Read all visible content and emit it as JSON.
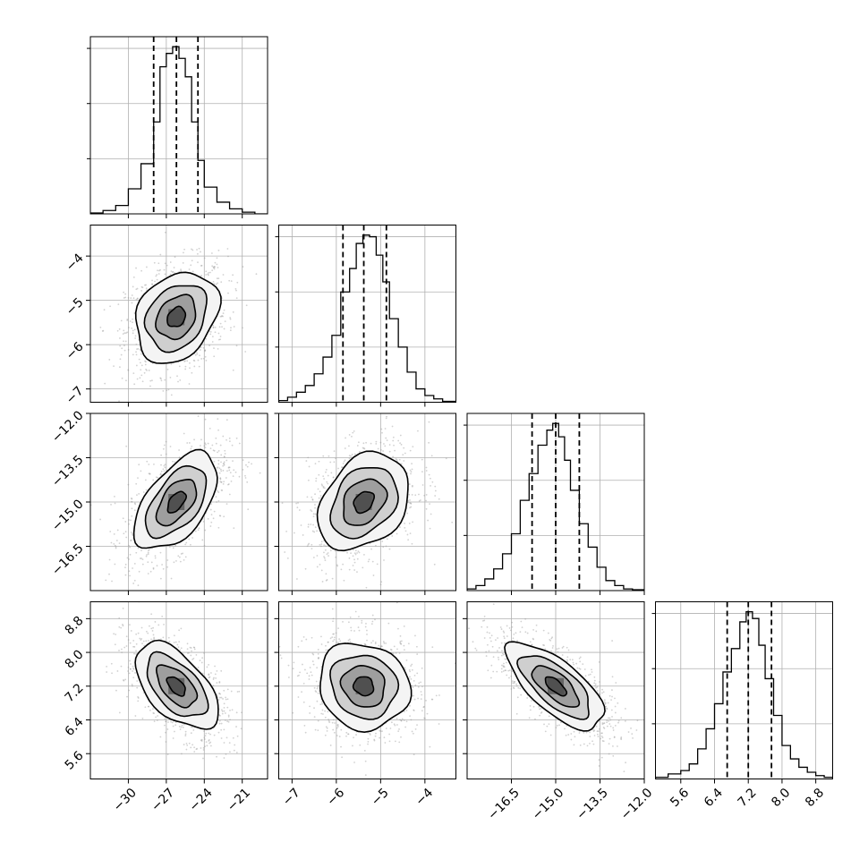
{
  "chart_data": {
    "type": "corner",
    "grid": true,
    "parameters": [
      {
        "index": 0,
        "range": [
          -33,
          -19
        ],
        "ticks": [
          -30,
          -27,
          -24,
          -21
        ],
        "tick_labels": [
          "−30",
          "−27",
          "−24",
          "−21"
        ],
        "quantiles": [
          -28.0,
          -26.2,
          -24.5
        ],
        "median": -26.2,
        "sigma": 1.6,
        "hist_bins": [
          -33,
          -32,
          -31,
          -30,
          -29,
          -28,
          -27.5,
          -27,
          -26.5,
          -26,
          -25.5,
          -25,
          -24.5,
          -24,
          -23,
          -22,
          -21,
          -20,
          -19
        ],
        "hist_counts": [
          0.005,
          0.02,
          0.05,
          0.15,
          0.3,
          0.55,
          0.88,
          0.96,
          1.0,
          0.93,
          0.82,
          0.55,
          0.32,
          0.16,
          0.07,
          0.03,
          0.01,
          0.0
        ]
      },
      {
        "index": 1,
        "range": [
          -7.3,
          -3.3
        ],
        "ticks": [
          -7,
          -6,
          -5,
          -4
        ],
        "tick_labels": [
          "−7",
          "−6",
          "−5",
          "−4"
        ],
        "quantiles": [
          -5.85,
          -5.38,
          -4.87
        ],
        "median": -5.38,
        "sigma": 0.5,
        "hist_bins": [
          -7.3,
          -7.1,
          -6.9,
          -6.7,
          -6.5,
          -6.3,
          -6.1,
          -5.9,
          -5.7,
          -5.55,
          -5.4,
          -5.25,
          -5.1,
          -4.95,
          -4.8,
          -4.6,
          -4.4,
          -4.2,
          -4.0,
          -3.8,
          -3.6,
          -3.3
        ],
        "hist_counts": [
          0.01,
          0.03,
          0.06,
          0.1,
          0.17,
          0.27,
          0.4,
          0.66,
          0.8,
          0.95,
          1.0,
          0.99,
          0.88,
          0.72,
          0.5,
          0.33,
          0.18,
          0.08,
          0.04,
          0.02,
          0.005
        ]
      },
      {
        "index": 2,
        "range": [
          -18,
          -12
        ],
        "ticks": [
          -16.5,
          -15.0,
          -13.5,
          -12.0
        ],
        "tick_labels": [
          "−16.5",
          "−15.0",
          "−13.5",
          "−12.0"
        ],
        "quantiles": [
          -15.8,
          -15.0,
          -14.2
        ],
        "median": -15.0,
        "sigma": 0.8,
        "hist_bins": [
          -18,
          -17.7,
          -17.4,
          -17.1,
          -16.8,
          -16.5,
          -16.2,
          -15.9,
          -15.6,
          -15.3,
          -15.1,
          -14.9,
          -14.7,
          -14.5,
          -14.2,
          -13.9,
          -13.6,
          -13.3,
          -13.0,
          -12.7,
          -12.4,
          -12.0
        ],
        "hist_counts": [
          0.01,
          0.03,
          0.07,
          0.13,
          0.22,
          0.34,
          0.54,
          0.7,
          0.87,
          0.96,
          1.0,
          0.92,
          0.78,
          0.6,
          0.4,
          0.26,
          0.14,
          0.06,
          0.03,
          0.01,
          0.005
        ]
      },
      {
        "index": 3,
        "range": [
          5.0,
          9.2
        ],
        "ticks": [
          5.6,
          6.4,
          7.2,
          8.0,
          8.8
        ],
        "tick_labels": [
          "5.6",
          "6.4",
          "7.2",
          "8.0",
          "8.8"
        ],
        "quantiles": [
          6.7,
          7.2,
          7.75
        ],
        "median": 7.2,
        "sigma": 0.5,
        "hist_bins": [
          5.0,
          5.3,
          5.6,
          5.8,
          6.0,
          6.2,
          6.4,
          6.6,
          6.8,
          7.0,
          7.15,
          7.3,
          7.45,
          7.6,
          7.8,
          8.0,
          8.2,
          8.4,
          8.6,
          8.8,
          9.0,
          9.2
        ],
        "hist_counts": [
          0.01,
          0.03,
          0.05,
          0.09,
          0.18,
          0.3,
          0.45,
          0.64,
          0.78,
          0.94,
          1.0,
          0.96,
          0.8,
          0.6,
          0.38,
          0.2,
          0.12,
          0.07,
          0.04,
          0.02,
          0.01
        ]
      }
    ],
    "correlations": [
      {
        "row": 1,
        "col": 0,
        "rho": 0.25
      },
      {
        "row": 2,
        "col": 0,
        "rho": 0.55
      },
      {
        "row": 2,
        "col": 1,
        "rho": 0.3
      },
      {
        "row": 3,
        "col": 0,
        "rho": -0.55
      },
      {
        "row": 3,
        "col": 1,
        "rho": -0.1
      },
      {
        "row": 3,
        "col": 2,
        "rho": -0.7
      }
    ],
    "contour_levels": [
      0.5,
      1.0,
      1.5,
      2.0
    ]
  }
}
